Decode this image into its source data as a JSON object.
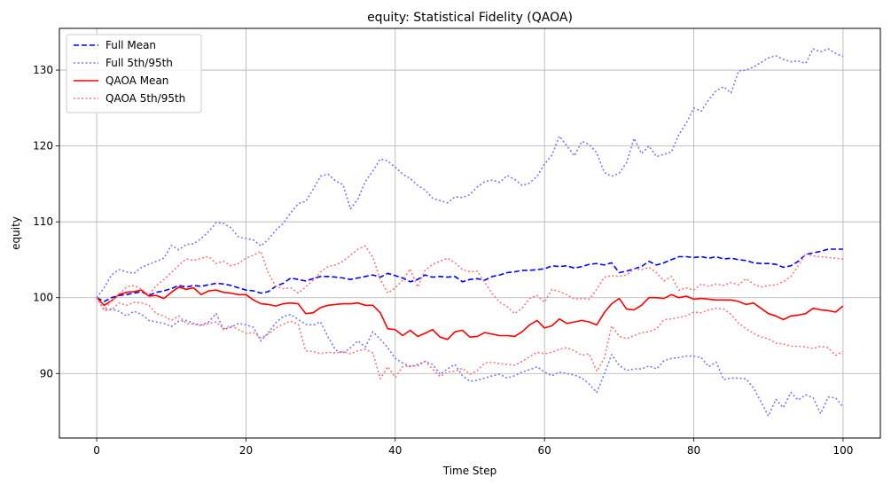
{
  "chart_data": {
    "type": "line",
    "title": "equity: Statistical Fidelity (QAOA)",
    "xlabel": "Time Step",
    "ylabel": "equity",
    "xlim": [
      -5,
      105
    ],
    "ylim": [
      81.5,
      135.5
    ],
    "xticks": [
      0,
      20,
      40,
      60,
      80,
      100
    ],
    "yticks": [
      90,
      100,
      110,
      120,
      130
    ],
    "grid": true,
    "legend_position": "top-left",
    "x": [
      0,
      1,
      2,
      3,
      4,
      5,
      6,
      7,
      8,
      9,
      10,
      11,
      12,
      13,
      14,
      15,
      16,
      17,
      18,
      19,
      20,
      21,
      22,
      23,
      24,
      25,
      26,
      27,
      28,
      29,
      30,
      31,
      32,
      33,
      34,
      35,
      36,
      37,
      38,
      39,
      40,
      41,
      42,
      43,
      44,
      45,
      46,
      47,
      48,
      49,
      50,
      51,
      52,
      53,
      54,
      55,
      56,
      57,
      58,
      59,
      60,
      61,
      62,
      63,
      64,
      65,
      66,
      67,
      68,
      69,
      70,
      71,
      72,
      73,
      74,
      75,
      76,
      77,
      78,
      79,
      80,
      81,
      82,
      83,
      84,
      85,
      86,
      87,
      88,
      89,
      90,
      91,
      92,
      93,
      94,
      95,
      96,
      97,
      98,
      99,
      100
    ],
    "series": [
      {
        "name": "Full Mean",
        "color": "#0000ff",
        "style": "dashed",
        "values": [
          100.0,
          99.5,
          100.0,
          100.3,
          100.4,
          100.6,
          100.8,
          100.3,
          100.7,
          100.9,
          101.2,
          101.6,
          101.4,
          101.6,
          101.5,
          101.7,
          101.9,
          101.8,
          101.6,
          101.3,
          101.0,
          100.9,
          100.6,
          100.8,
          101.5,
          101.9,
          102.6,
          102.4,
          102.2,
          102.5,
          102.8,
          102.8,
          102.7,
          102.6,
          102.4,
          102.6,
          102.8,
          103.0,
          102.7,
          103.2,
          102.9,
          102.6,
          102.1,
          102.4,
          103.0,
          102.7,
          102.8,
          102.7,
          102.8,
          102.1,
          102.4,
          102.5,
          102.3,
          102.8,
          103.0,
          103.3,
          103.4,
          103.6,
          103.6,
          103.7,
          103.8,
          104.2,
          104.1,
          104.2,
          103.9,
          104.1,
          104.4,
          104.5,
          104.3,
          104.6,
          103.3,
          103.5,
          103.8,
          104.1,
          104.8,
          104.3,
          104.6,
          105.0,
          105.4,
          105.4,
          105.3,
          105.4,
          105.2,
          105.4,
          105.1,
          105.2,
          105.0,
          104.9,
          104.6,
          104.5,
          104.5,
          104.4,
          104.0,
          104.2,
          104.8,
          105.7,
          105.9,
          106.1,
          106.4,
          106.4,
          106.4
        ]
      },
      {
        "name": "Full 5th/95th",
        "color": "#7777ff",
        "style": "dotted",
        "values": [
          100.0,
          101.3,
          103.0,
          103.7,
          103.4,
          103.2,
          104.0,
          104.4,
          104.8,
          105.2,
          106.9,
          106.3,
          107.0,
          107.1,
          107.8,
          108.7,
          109.9,
          109.8,
          109.2,
          108.0,
          107.8,
          107.6,
          106.8,
          107.7,
          108.9,
          109.8,
          111.2,
          112.4,
          112.7,
          114.3,
          116.0,
          116.3,
          115.4,
          114.9,
          111.7,
          113.0,
          115.3,
          116.7,
          118.3,
          118.0,
          117.2,
          116.3,
          115.7,
          114.8,
          114.2,
          113.1,
          112.8,
          112.5,
          113.3,
          113.2,
          113.6,
          114.6,
          115.3,
          115.5,
          115.2,
          116.1,
          115.6,
          114.8,
          115.1,
          116.0,
          117.6,
          118.8,
          121.3,
          120.0,
          118.7,
          120.6,
          120.2,
          119.1,
          116.5,
          116.0,
          116.4,
          117.8,
          121.0,
          119.0,
          120.0,
          118.6,
          118.9,
          119.2,
          121.5,
          123.0,
          125.0,
          124.6,
          126.1,
          127.3,
          127.8,
          127.0,
          129.9,
          130.0,
          130.4,
          131.0,
          131.6,
          131.9,
          131.4,
          131.1,
          131.2,
          130.9,
          132.8,
          132.4,
          132.8,
          132.2,
          131.8
        ]
      },
      {
        "name": "Full 5th/95th (lower)",
        "color": "#7777ff",
        "style": "dotted",
        "values": [
          100.0,
          98.4,
          98.5,
          98.2,
          97.6,
          98.2,
          97.8,
          97.0,
          96.8,
          96.6,
          96.2,
          96.9,
          97.0,
          96.6,
          96.4,
          96.8,
          97.9,
          95.8,
          96.1,
          96.6,
          96.4,
          96.1,
          94.3,
          95.4,
          96.7,
          97.5,
          97.8,
          97.1,
          96.5,
          96.4,
          96.8,
          94.8,
          93.1,
          92.7,
          93.4,
          94.3,
          93.5,
          95.5,
          94.5,
          93.4,
          92.0,
          91.4,
          90.9,
          91.2,
          91.6,
          91.2,
          89.9,
          90.6,
          91.2,
          89.7,
          89.0,
          89.1,
          89.4,
          89.7,
          89.9,
          89.4,
          89.7,
          90.2,
          90.5,
          90.9,
          90.2,
          89.7,
          90.2,
          90.0,
          89.8,
          89.4,
          88.6,
          87.5,
          89.9,
          92.5,
          91.1,
          90.4,
          90.6,
          90.6,
          91.0,
          90.6,
          91.7,
          92.0,
          92.1,
          92.3,
          92.3,
          92.1,
          90.9,
          91.5,
          89.2,
          89.4,
          89.4,
          89.3,
          88.1,
          86.3,
          84.4,
          86.6,
          85.5,
          87.5,
          86.5,
          87.2,
          86.8,
          84.7,
          86.9,
          86.8,
          85.6
        ]
      },
      {
        "name": "QAOA Mean",
        "color": "#ff0000",
        "style": "solid",
        "values": [
          100.0,
          99.0,
          99.6,
          100.4,
          100.7,
          100.8,
          101.0,
          100.2,
          100.3,
          99.9,
          100.7,
          101.4,
          101.1,
          101.3,
          100.4,
          100.9,
          101.0,
          100.7,
          100.6,
          100.4,
          100.4,
          99.7,
          99.2,
          99.1,
          98.9,
          99.2,
          99.3,
          99.2,
          97.9,
          98.0,
          98.7,
          99.0,
          99.1,
          99.2,
          99.2,
          99.3,
          99.0,
          99.0,
          98.0,
          95.9,
          95.8,
          95.0,
          95.7,
          94.9,
          95.3,
          95.8,
          94.8,
          94.5,
          95.5,
          95.7,
          94.8,
          94.9,
          95.4,
          95.2,
          95.0,
          95.0,
          94.9,
          95.5,
          96.4,
          97.0,
          96.0,
          96.3,
          97.2,
          96.6,
          96.8,
          97.0,
          96.8,
          96.4,
          98.0,
          99.2,
          99.9,
          98.5,
          98.4,
          99.0,
          100.0,
          100.0,
          99.9,
          100.4,
          100.0,
          100.2,
          99.8,
          99.9,
          99.8,
          99.7,
          99.7,
          99.7,
          99.5,
          99.1,
          99.3,
          98.6,
          97.9,
          97.6,
          97.1,
          97.6,
          97.7,
          97.9,
          98.6,
          98.4,
          98.3,
          98.1,
          98.9
        ]
      },
      {
        "name": "QAOA 5th/95th",
        "color": "#ff7777",
        "style": "dotted",
        "values": [
          100.0,
          98.4,
          99.6,
          100.5,
          101.4,
          101.6,
          101.1,
          100.4,
          101.6,
          102.4,
          103.3,
          104.3,
          105.1,
          104.9,
          105.2,
          105.4,
          104.5,
          104.8,
          104.2,
          104.5,
          105.2,
          105.6,
          106.1,
          103.2,
          101.5,
          101.2,
          101.3,
          100.6,
          101.4,
          102.3,
          103.4,
          104.1,
          104.3,
          104.8,
          105.6,
          106.4,
          106.8,
          105.3,
          102.4,
          100.6,
          101.3,
          102.3,
          103.8,
          101.4,
          103.6,
          104.4,
          104.8,
          105.2,
          104.6,
          103.7,
          103.4,
          103.5,
          102.0,
          100.5,
          99.4,
          98.8,
          97.9,
          98.6,
          99.9,
          100.3,
          99.4,
          101.1,
          100.8,
          100.4,
          99.8,
          99.9,
          99.8,
          101.1,
          102.7,
          102.9,
          102.8,
          103.0,
          103.8,
          103.7,
          104.0,
          103.3,
          102.2,
          102.8,
          101.0,
          101.3,
          101.0,
          101.8,
          101.5,
          101.8,
          101.6,
          102.0,
          101.7,
          102.5,
          101.8,
          101.4,
          101.6,
          101.7,
          102.1,
          102.8,
          104.2,
          105.8,
          105.5,
          105.4,
          105.3,
          105.2,
          105.1
        ]
      },
      {
        "name": "QAOA 5th/95th (lower)",
        "color": "#ff7777",
        "style": "dotted",
        "values": [
          100.0,
          98.3,
          98.4,
          99.3,
          99.0,
          99.4,
          99.3,
          99.0,
          97.9,
          97.6,
          97.0,
          97.6,
          96.6,
          96.5,
          96.3,
          96.6,
          96.8,
          95.9,
          96.3,
          95.8,
          95.3,
          95.4,
          94.7,
          95.2,
          96.0,
          96.5,
          96.9,
          96.5,
          93.0,
          92.9,
          92.6,
          92.8,
          92.7,
          92.9,
          92.6,
          93.0,
          93.2,
          92.7,
          89.3,
          90.9,
          89.5,
          90.9,
          91.0,
          91.0,
          91.6,
          90.6,
          89.6,
          90.2,
          90.3,
          90.7,
          89.9,
          90.4,
          91.4,
          91.5,
          91.3,
          91.2,
          91.1,
          91.6,
          92.2,
          92.8,
          92.6,
          92.8,
          93.2,
          93.4,
          93.0,
          92.4,
          92.6,
          90.3,
          92.0,
          96.3,
          94.9,
          94.6,
          95.0,
          95.4,
          95.5,
          95.9,
          97.1,
          97.2,
          97.4,
          97.6,
          98.1,
          98.0,
          98.4,
          98.6,
          98.5,
          97.8,
          96.6,
          95.9,
          95.3,
          94.8,
          94.6,
          94.0,
          93.9,
          93.6,
          93.6,
          93.5,
          93.3,
          93.6,
          93.4,
          92.4,
          92.9
        ]
      }
    ],
    "legend": [
      {
        "label": "Full Mean",
        "color": "#0000ff",
        "style": "dashed"
      },
      {
        "label": "Full 5th/95th",
        "color": "#7777ff",
        "style": "dotted"
      },
      {
        "label": "QAOA Mean",
        "color": "#ff0000",
        "style": "solid"
      },
      {
        "label": "QAOA 5th/95th",
        "color": "#ff7777",
        "style": "dotted"
      }
    ]
  }
}
